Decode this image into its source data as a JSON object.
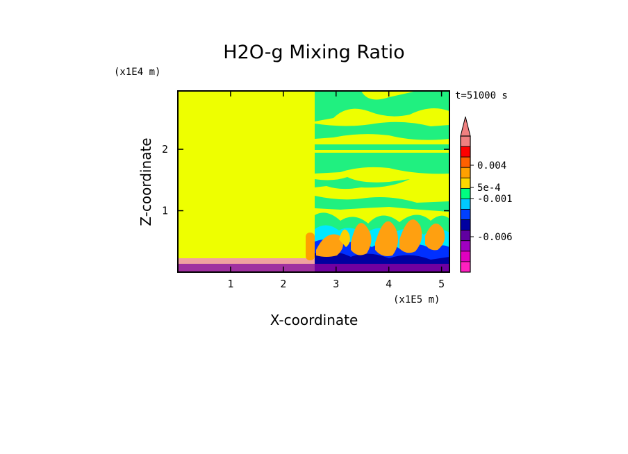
{
  "chart_data": {
    "type": "heatmap",
    "title": "H2O-g Mixing Ratio",
    "xlabel": "X-coordinate",
    "ylabel": "Z-coordinate",
    "x_unit": "(x1E5 m)",
    "y_unit": "(x1E4 m)",
    "xlim": [
      0,
      5.15
    ],
    "ylim": [
      0,
      2.95
    ],
    "x_ticks": [
      "1",
      "2",
      "3",
      "4",
      "5"
    ],
    "y_ticks": [
      "1",
      "2"
    ],
    "time_label": "t=51000 s",
    "colorbar": {
      "labels": [
        "0.004",
        "5e-4",
        "-0.001",
        "-0.006"
      ],
      "colors": [
        "#f08080",
        "#ff0000",
        "#ff6000",
        "#ffa000",
        "#ffd800",
        "#00ff80",
        "#00c8ff",
        "#0040ff",
        "#0000a0",
        "#6000a0",
        "#a000c0",
        "#e000c0",
        "#ff20c0"
      ],
      "extend": "max"
    },
    "field_note": "left half (x<2.55) nearly uniform yellow with pink/purple surface layer; right half turbulent layered field with orange plumes over blue/purple near surface",
    "colors": {
      "yellow": "#eeff00",
      "green": "#00f080",
      "cyan": "#00f0ff",
      "blue": "#0030ff",
      "darkblue": "#0000a0",
      "purple": "#7000a0",
      "orange": "#ffa010",
      "pink": "#f06090"
    }
  }
}
